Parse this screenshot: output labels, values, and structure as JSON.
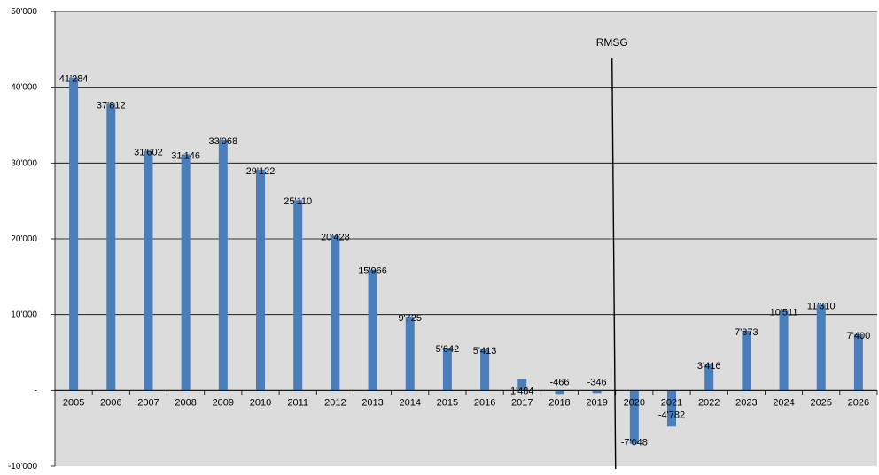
{
  "chart_data": {
    "type": "bar",
    "categories": [
      "2005",
      "2006",
      "2007",
      "2008",
      "2009",
      "2010",
      "2011",
      "2012",
      "2013",
      "2014",
      "2015",
      "2016",
      "2017",
      "2018",
      "2019",
      "2020",
      "2021",
      "2022",
      "2023",
      "2024",
      "2025",
      "2026"
    ],
    "values": [
      41284,
      37812,
      31602,
      31146,
      33068,
      29122,
      25110,
      20428,
      15966,
      9725,
      5642,
      5413,
      1484,
      -466,
      -346,
      -7048,
      -4782,
      3416,
      7873,
      10511,
      11310,
      7400
    ],
    "value_labels": [
      "41'284",
      "37'812",
      "31'602",
      "31'146",
      "33'068",
      "29'122",
      "25'110",
      "20'428",
      "15'966",
      "9'725",
      "5'642",
      "5'413",
      "1'484",
      "-466",
      "-346",
      "-7'048",
      "-4'782",
      "3'416",
      "7'873",
      "10'511",
      "11'310",
      "7'400"
    ],
    "ylim": [
      -10000,
      50000
    ],
    "y_ticks": [
      50000,
      40000,
      30000,
      20000,
      10000,
      0,
      -10000
    ],
    "y_tick_labels": [
      "50'000",
      "40'000",
      "30'000",
      "20'000",
      "10'000",
      "-",
      "-10'000"
    ],
    "grid": true,
    "annotation": {
      "text": "RMSG",
      "after_category": "2019"
    },
    "colors": {
      "bar": "#4a7ebb",
      "plot_bg": "#dcdcdc",
      "grid": "#000000"
    }
  }
}
